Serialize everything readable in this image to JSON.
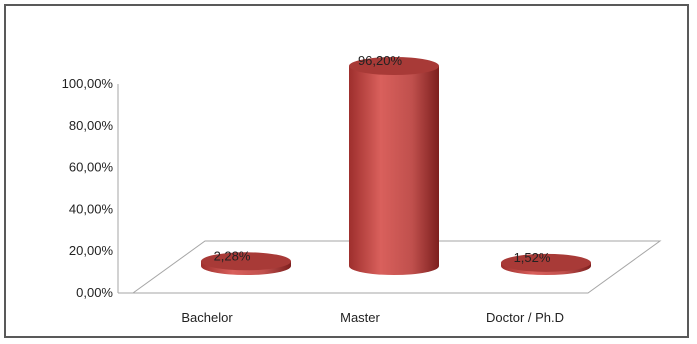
{
  "chart_data": {
    "type": "bar",
    "style": "3d-cylinder",
    "categories": [
      "Bachelor",
      "Master",
      "Doctor / Ph.D"
    ],
    "values": [
      2.28,
      96.2,
      1.52
    ],
    "data_labels": [
      "2,28%",
      "96,20%",
      "1,52%"
    ],
    "y_ticks": [
      "0,00%",
      "20,00%",
      "40,00%",
      "60,00%",
      "80,00%",
      "100,00%"
    ],
    "ylim": [
      0,
      100
    ],
    "grid": false,
    "legend": "none",
    "colors": {
      "bar": "#c0504d",
      "bar_dark": "#8b2322",
      "bar_light": "#d9605c",
      "top": "#a83a37",
      "floor_line": "#a6a6a6"
    }
  }
}
